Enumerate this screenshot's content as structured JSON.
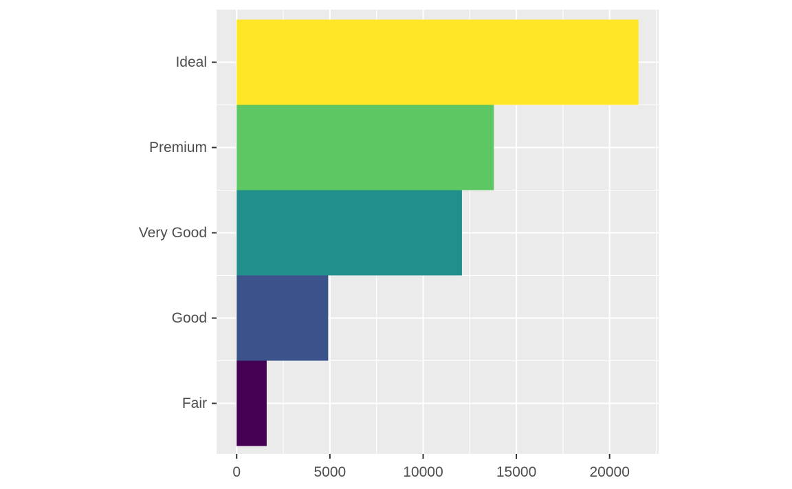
{
  "chart_data": {
    "type": "bar",
    "orientation": "horizontal",
    "categories": [
      "Fair",
      "Good",
      "Very Good",
      "Premium",
      "Ideal"
    ],
    "values": [
      1610,
      4906,
      12082,
      13791,
      21551
    ],
    "colors": [
      "#440154",
      "#3b528b",
      "#21908c",
      "#5dc863",
      "#fde725"
    ],
    "xlim": [
      -1077.55,
      22628.55
    ],
    "x_ticks": [
      0,
      5000,
      10000,
      15000,
      20000
    ],
    "x_tick_labels": [
      "0",
      "5000",
      "10000",
      "15000",
      "20000"
    ],
    "title": "",
    "xlabel": "",
    "ylabel": "",
    "grid": true,
    "legend": "none",
    "panel_background": "#ebebeb",
    "grid_color": "#ffffff"
  }
}
